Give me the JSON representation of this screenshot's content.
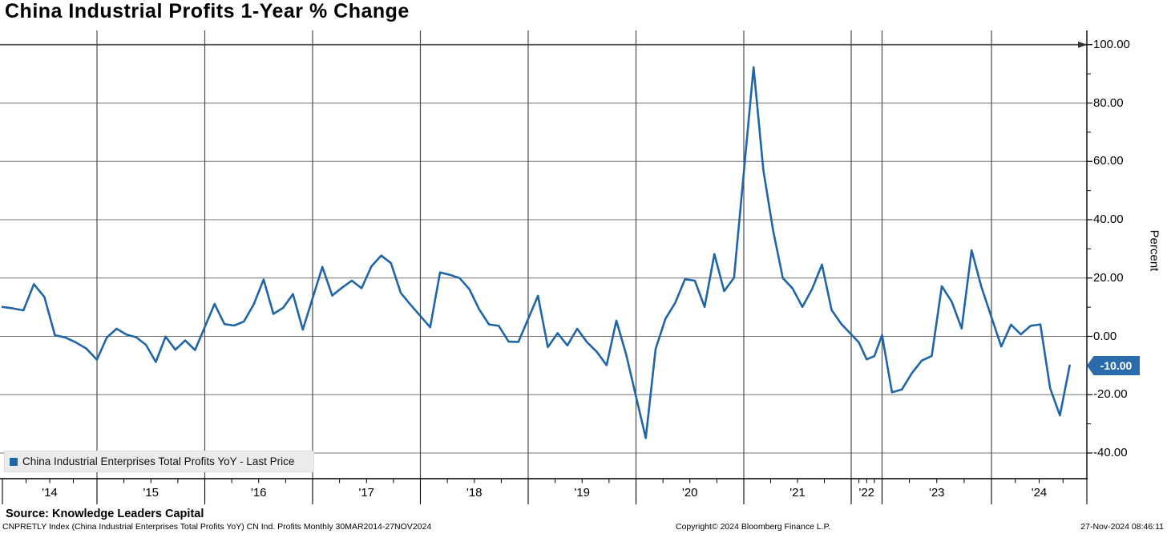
{
  "title": "China Industrial Profits 1-Year % Change",
  "legend": {
    "label": "China Industrial Enterprises Total Profits YoY - Last Price",
    "marker_color": "#1f65a8"
  },
  "badge": {
    "last_price": "-10.00",
    "color": "#2a6cab"
  },
  "y_axis": {
    "label": "Percent"
  },
  "footer": {
    "source": "Source: Knowledge Leaders Capital",
    "security_info": "CNPRETLY Index (China Industrial Enterprises Total Profits YoY) CN Ind. Profits  Monthly 30MAR2014-27NOV2024",
    "copyright": "Copyright© 2024 Bloomberg Finance L.P.",
    "timestamp": "27-Nov-2024 08:46:11"
  },
  "chart_data": {
    "type": "line",
    "title": "China Industrial Profits 1-Year % Change",
    "xlabel": "",
    "ylabel": "Percent",
    "ylim": [
      -48,
      104
    ],
    "yticks": [
      100,
      80,
      60,
      40,
      20,
      0,
      -20,
      -40
    ],
    "ytick_labels": [
      "100.00",
      "80.00",
      "60.00",
      "40.00",
      "20.00",
      "0.00",
      "-20.00",
      "-40.00"
    ],
    "y_minor_ticks": [
      90,
      70,
      50,
      30,
      10,
      -10,
      -30
    ],
    "xtick_labels": [
      "'14",
      "'15",
      "'16",
      "'17",
      "'18",
      "'19",
      "'20",
      "'21",
      "'22",
      "'23",
      "'24"
    ],
    "grid": true,
    "legend_position": "bottom-left",
    "line_color": "#1f65a8",
    "last_price": -10.0,
    "note": "Monthly year-over-year percent change; sparse observations during 2022",
    "series": [
      {
        "name": "China Industrial Enterprises Total Profits YoY - Last Price",
        "points": [
          [
            "2014-03",
            10.1
          ],
          [
            "2014-04",
            9.6
          ],
          [
            "2014-05",
            8.9
          ],
          [
            "2014-06",
            17.9
          ],
          [
            "2014-07",
            13.5
          ],
          [
            "2014-08",
            0.4
          ],
          [
            "2014-09",
            -0.4
          ],
          [
            "2014-10",
            -2.1
          ],
          [
            "2014-11",
            -4.2
          ],
          [
            "2014-12",
            -8.0
          ],
          [
            "2015-03",
            -0.4
          ],
          [
            "2015-04",
            2.6
          ],
          [
            "2015-05",
            0.6
          ],
          [
            "2015-06",
            -0.3
          ],
          [
            "2015-07",
            -2.9
          ],
          [
            "2015-08",
            -8.8
          ],
          [
            "2015-09",
            -0.1
          ],
          [
            "2015-10",
            -4.6
          ],
          [
            "2015-11",
            -1.4
          ],
          [
            "2015-12",
            -4.7
          ],
          [
            "2016-03",
            11.1
          ],
          [
            "2016-04",
            4.2
          ],
          [
            "2016-05",
            3.7
          ],
          [
            "2016-06",
            5.1
          ],
          [
            "2016-07",
            11.0
          ],
          [
            "2016-08",
            19.5
          ],
          [
            "2016-09",
            7.7
          ],
          [
            "2016-10",
            9.8
          ],
          [
            "2016-11",
            14.5
          ],
          [
            "2016-12",
            2.3
          ],
          [
            "2017-03",
            23.8
          ],
          [
            "2017-04",
            14.0
          ],
          [
            "2017-05",
            16.7
          ],
          [
            "2017-06",
            19.1
          ],
          [
            "2017-07",
            16.5
          ],
          [
            "2017-08",
            24.0
          ],
          [
            "2017-09",
            27.7
          ],
          [
            "2017-10",
            25.1
          ],
          [
            "2017-11",
            14.9
          ],
          [
            "2017-12",
            10.8
          ],
          [
            "2018-03",
            3.1
          ],
          [
            "2018-04",
            21.9
          ],
          [
            "2018-05",
            21.1
          ],
          [
            "2018-06",
            20.0
          ],
          [
            "2018-07",
            16.2
          ],
          [
            "2018-08",
            9.2
          ],
          [
            "2018-09",
            4.1
          ],
          [
            "2018-10",
            3.6
          ],
          [
            "2018-11",
            -1.8
          ],
          [
            "2018-12",
            -1.9
          ],
          [
            "2019-03",
            13.9
          ],
          [
            "2019-04",
            -3.7
          ],
          [
            "2019-05",
            1.1
          ],
          [
            "2019-06",
            -3.1
          ],
          [
            "2019-07",
            2.6
          ],
          [
            "2019-08",
            -2.0
          ],
          [
            "2019-09",
            -5.3
          ],
          [
            "2019-10",
            -9.9
          ],
          [
            "2019-11",
            5.4
          ],
          [
            "2019-12",
            -6.3
          ],
          [
            "2020-03",
            -34.9
          ],
          [
            "2020-04",
            -4.3
          ],
          [
            "2020-05",
            6.0
          ],
          [
            "2020-06",
            11.5
          ],
          [
            "2020-07",
            19.6
          ],
          [
            "2020-08",
            19.1
          ],
          [
            "2020-09",
            10.1
          ],
          [
            "2020-10",
            28.2
          ],
          [
            "2020-11",
            15.5
          ],
          [
            "2020-12",
            20.1
          ],
          [
            "2021-03",
            92.3
          ],
          [
            "2021-04",
            57.0
          ],
          [
            "2021-05",
            36.4
          ],
          [
            "2021-06",
            20.0
          ],
          [
            "2021-07",
            16.4
          ],
          [
            "2021-08",
            10.1
          ],
          [
            "2021-09",
            16.3
          ],
          [
            "2021-10",
            24.6
          ],
          [
            "2021-11",
            9.0
          ],
          [
            "2021-12",
            4.2
          ],
          [
            "2022-03",
            -2.1
          ],
          [
            "2022-06",
            -7.9
          ],
          [
            "2022-09",
            -6.8
          ],
          [
            "2022-12",
            0.4
          ],
          [
            "2023-03",
            -19.2
          ],
          [
            "2023-04",
            -18.2
          ],
          [
            "2023-05",
            -12.6
          ],
          [
            "2023-06",
            -8.3
          ],
          [
            "2023-07",
            -6.7
          ],
          [
            "2023-08",
            17.2
          ],
          [
            "2023-09",
            11.9
          ],
          [
            "2023-10",
            2.7
          ],
          [
            "2023-11",
            29.5
          ],
          [
            "2023-12",
            16.8
          ],
          [
            "2024-03",
            -3.5
          ],
          [
            "2024-04",
            4.0
          ],
          [
            "2024-05",
            0.7
          ],
          [
            "2024-06",
            3.6
          ],
          [
            "2024-07",
            4.1
          ],
          [
            "2024-08",
            -17.8
          ],
          [
            "2024-09",
            -27.1
          ],
          [
            "2024-10",
            -10.0
          ]
        ]
      }
    ]
  }
}
